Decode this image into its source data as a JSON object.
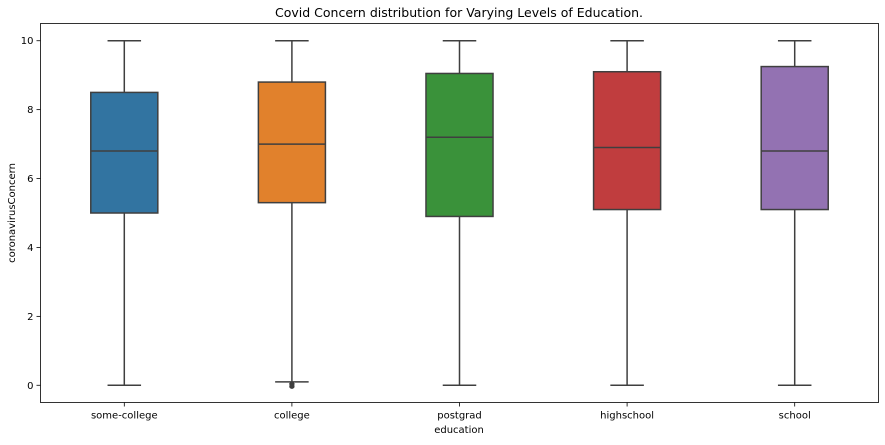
{
  "chart_data": {
    "type": "box",
    "title": "Covid Concern distribution for Varying Levels of Education.",
    "xlabel": "education",
    "ylabel": "coronavirusConcern",
    "categories": [
      "some-college",
      "college",
      "postgrad",
      "highschool",
      "school"
    ],
    "ylim": [
      -0.5,
      10.5
    ],
    "yticks": [
      0,
      2,
      4,
      6,
      8,
      10
    ],
    "grid": false,
    "legend": "none",
    "boxes": [
      {
        "category": "some-college",
        "whisker_low": 0,
        "q1": 5.0,
        "median": 6.8,
        "q3": 8.5,
        "whisker_high": 10,
        "outliers": [],
        "color": "#3274a1"
      },
      {
        "category": "college",
        "whisker_low": 0.1,
        "q1": 5.3,
        "median": 7.0,
        "q3": 8.8,
        "whisker_high": 10,
        "outliers": [
          0,
          0
        ],
        "color": "#e1812c"
      },
      {
        "category": "postgrad",
        "whisker_low": 0,
        "q1": 4.9,
        "median": 7.2,
        "q3": 9.05,
        "whisker_high": 10,
        "outliers": [],
        "color": "#3a923a"
      },
      {
        "category": "highschool",
        "whisker_low": 0,
        "q1": 5.1,
        "median": 6.9,
        "q3": 9.1,
        "whisker_high": 10,
        "outliers": [],
        "color": "#c03d3e"
      },
      {
        "category": "school",
        "whisker_low": 0,
        "q1": 5.1,
        "median": 6.8,
        "q3": 9.25,
        "whisker_high": 10,
        "outliers": [],
        "color": "#9372b2"
      }
    ]
  }
}
